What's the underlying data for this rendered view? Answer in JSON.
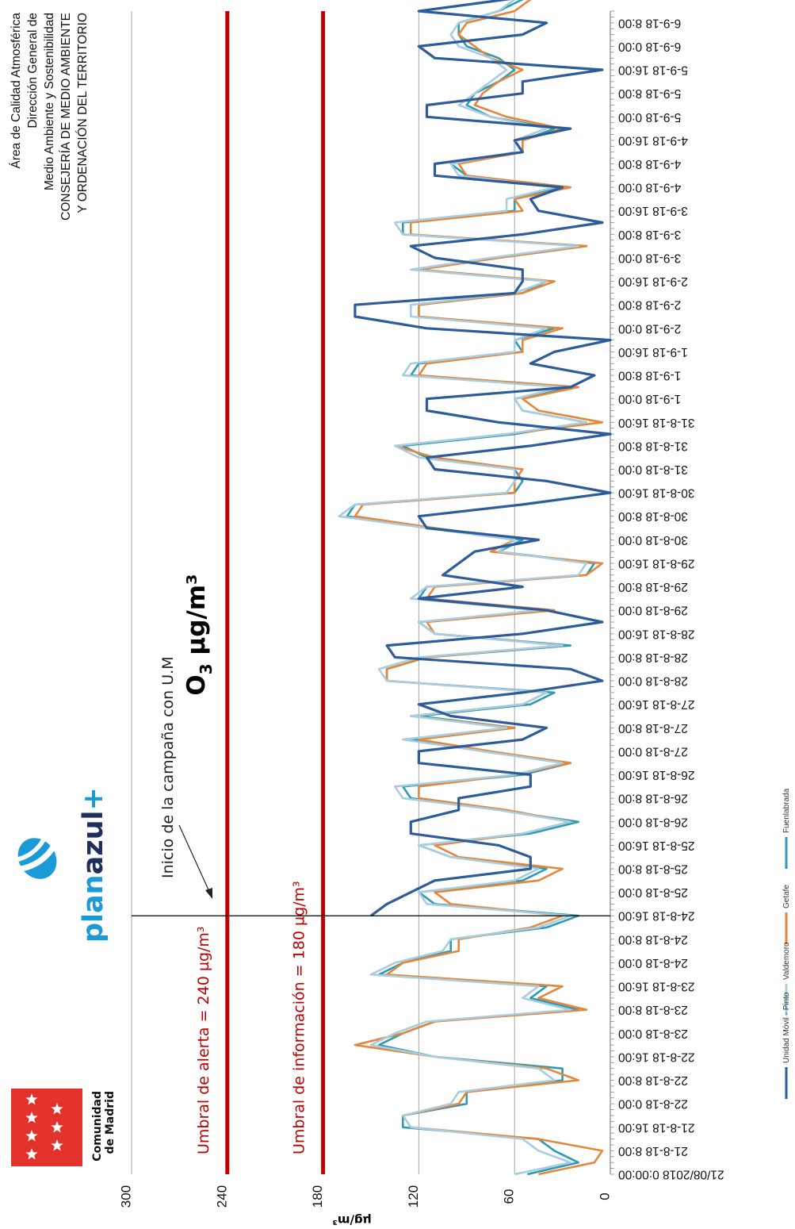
{
  "header": {
    "lines": [
      "Área de Calidad Atmosférica",
      "Dirección General de",
      "Medio Ambiente y Sostenibilidad",
      "CONSEJERÍA DE MEDIO AMBIENTE",
      "Y ORDENACIÓN DEL TERRITORIO"
    ]
  },
  "logos": {
    "comunidad_line1": "Comunidad",
    "comunidad_line2": "de Madrid",
    "planazul_a": "plan",
    "planazul_b": "azul",
    "planazul_plus": "+"
  },
  "annotation": {
    "campaign_start": "Inicio de la campaña con U.M"
  },
  "chart_data": {
    "type": "line",
    "title": "O3 µg/m³",
    "title_main": "O",
    "title_sub": "3",
    "title_unit": " µg/m³",
    "xlabel": "",
    "ylabel": "µg/m³",
    "ylim": [
      0,
      300
    ],
    "yticks": [
      "0",
      "60",
      "120",
      "180",
      "240",
      "300"
    ],
    "ytick_values": [
      0,
      60,
      120,
      180,
      240,
      300
    ],
    "grid": true,
    "orientation": "rotated-90-cw",
    "x_ticks": [
      "21/08/2018  0:00:00",
      "21-8-18 8:00",
      "21-8-18 16:00",
      "22-8-18 0:00",
      "22-8-18 8:00",
      "22-8-18 16:00",
      "23-8-18 0:00",
      "23-8-18 8:00",
      "23-8-18 16:00",
      "24-8-18 0:00",
      "24-8-18 8:00",
      "24-8-18 16:00",
      "25-8-18 0:00",
      "25-8-18 8:00",
      "25-8-18 16:00",
      "26-8-18 0:00",
      "26-8-18 8:00",
      "26-8-18 16:00",
      "27-8-18 0:00",
      "27-8-18 8:00",
      "27-8-18 16:00",
      "28-8-18 0:00",
      "28-8-18 8:00",
      "28-8-18 16:00",
      "29-8-18 0:00",
      "29-8-18 8:00",
      "29-8-18 16:00",
      "30-8-18 0:00",
      "30-8-18 8:00",
      "30-8-18 16:00",
      "31-8-18 0:00",
      "31-8-18 8:00",
      "31-8-18 16:00",
      "1-9-18 0:00",
      "1-9-18 8:00",
      "1-9-18 16:00",
      "2-9-18 0:00",
      "2-9-18 8:00",
      "2-9-18 16:00",
      "3-9-18 0:00",
      "3-9-18 8:00",
      "3-9-18 16:00",
      "4-9-18 0:00",
      "4-9-18 8:00",
      "4-9-18 16:00",
      "5-9-18 0:00",
      "5-9-18 8:00",
      "5-9-18 16:00",
      "6-9-18 0:00",
      "6-9-18 8:00"
    ],
    "thresholds": [
      {
        "label": "Umbral de alerta = 240 µg/m³",
        "value": 240,
        "color": "#c00000"
      },
      {
        "label": "Umbral de información = 180 µg/m³",
        "value": 180,
        "color": "#c00000"
      }
    ],
    "campaign_start_tick": 11,
    "series": [
      {
        "name": "Fuenlabrada",
        "color": "#2e9bb5",
        "start_tick": 0,
        "values": [
          52,
          20,
          35,
          45,
          130,
          130,
          90,
          90,
          30,
          30,
          110,
          145,
          130,
          110,
          20,
          50,
          40,
          145,
          130,
          100,
          100,
          40,
          20,
          110,
          120,
          55,
          40,
          100,
          120,
          50,
          20,
          70,
          125,
          130,
          55,
          25,
          80,
          125,
          60,
          120,
          50,
          35,
          140,
          140,
          115,
          25,
          110,
          120,
          40,
          120,
          115,
          15,
          10,
          70,
          55,
          110,
          165,
          160,
          60,
          55,
          60,
          115,
          130,
          60,
          15,
          55,
          60,
          25,
          125,
          120,
          55,
          60,
          35,
          120,
          120,
          55,
          40,
          120,
          70,
          15,
          130,
          130,
          60,
          60,
          30,
          90,
          100,
          55,
          55,
          35,
          75,
          90,
          85,
          70,
          60,
          70,
          90,
          95,
          95,
          70,
          55,
          35
        ]
      },
      {
        "name": "Getafe",
        "color": "#e5873a",
        "start_tick": 0,
        "values": [
          45,
          10,
          5,
          45,
          125,
          130,
          95,
          90,
          20,
          40,
          110,
          160,
          130,
          110,
          15,
          45,
          30,
          140,
          130,
          95,
          95,
          50,
          30,
          100,
          110,
          45,
          30,
          95,
          110,
          55,
          25,
          65,
          120,
          120,
          60,
          25,
          75,
          120,
          60,
          125,
          55,
          40,
          140,
          140,
          115,
          30,
          110,
          115,
          35,
          115,
          110,
          15,
          5,
          75,
          60,
          110,
          160,
          155,
          60,
          60,
          55,
          110,
          135,
          65,
          5,
          45,
          55,
          20,
          120,
          115,
          55,
          55,
          30,
          120,
          120,
          55,
          35,
          120,
          70,
          15,
          125,
          125,
          55,
          60,
          25,
          90,
          95,
          55,
          55,
          30,
          65,
          85,
          80,
          70,
          55,
          75,
          85,
          95,
          90,
          60,
          50,
          25
        ]
      },
      {
        "name": "Valdemoro",
        "color": "#a9cde0",
        "start_tick": 0,
        "values": [
          60,
          25,
          45,
          55,
          125,
          130,
          100,
          95,
          35,
          45,
          110,
          150,
          135,
          115,
          25,
          55,
          45,
          150,
          135,
          105,
          100,
          45,
          25,
          115,
          120,
          60,
          45,
          100,
          120,
          55,
          25,
          70,
          130,
          135,
          60,
          30,
          80,
          130,
          65,
          125,
          55,
          40,
          140,
          145,
          120,
          30,
          110,
          120,
          45,
          125,
          115,
          20,
          15,
          70,
          60,
          115,
          170,
          160,
          65,
          60,
          60,
          120,
          135,
          65,
          15,
          55,
          60,
          30,
          130,
          125,
          60,
          60,
          40,
          125,
          125,
          60,
          40,
          125,
          75,
          20,
          130,
          135,
          65,
          65,
          35,
          95,
          100,
          60,
          60,
          40,
          75,
          95,
          85,
          75,
          65,
          75,
          95,
          100,
          95,
          70,
          60,
          40
        ]
      },
      {
        "name": "Unidad Móvil - Pinto",
        "color": "#2e5c9a",
        "start_tick": 11,
        "values": [
          150,
          140,
          125,
          110,
          50,
          50,
          70,
          125,
          125,
          95,
          95,
          50,
          50,
          120,
          120,
          55,
          40,
          100,
          120,
          55,
          5,
          25,
          135,
          140,
          55,
          5,
          40,
          120,
          55,
          105,
          95,
          85,
          45,
          115,
          120,
          55,
          0,
          40,
          110,
          115,
          50,
          0,
          70,
          115,
          115,
          25,
          10,
          50,
          35,
          0,
          115,
          160,
          160,
          60,
          55,
          55,
          110,
          125,
          55,
          5,
          45,
          50,
          30,
          110,
          110,
          55,
          60,
          25,
          115,
          115,
          55,
          55,
          5,
          110,
          120,
          55,
          40,
          120,
          65,
          10,
          120,
          120,
          55,
          55,
          30,
          85,
          95,
          55,
          55,
          30
        ]
      }
    ]
  }
}
